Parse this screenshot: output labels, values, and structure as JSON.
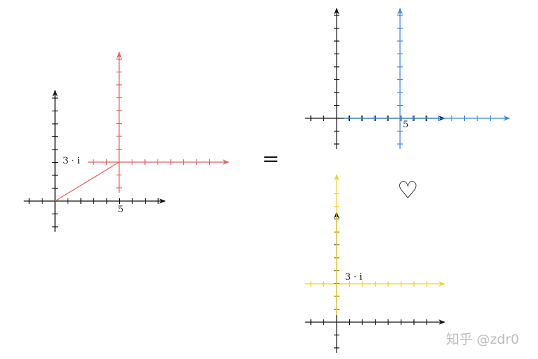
{
  "colors": {
    "black": "#111111",
    "red": "#e06262",
    "blue": "#3a86d6",
    "yellow": "#f2cf2a"
  },
  "left_panel": {
    "x_label": "5",
    "y_label": "3 · i",
    "vector_color": "red"
  },
  "equals_sign": "=",
  "top_right_panel": {
    "x_label": "5",
    "shifted_axes_color": "blue"
  },
  "heart_icon": "♡",
  "bottom_right_panel": {
    "y_label": "3 · i",
    "shifted_axes_color": "yellow"
  },
  "watermark": "知乎 @zdr0"
}
